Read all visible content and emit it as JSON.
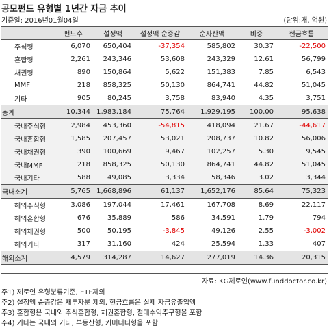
{
  "title": "공모펀드 유형별 1년간 자금 추이",
  "base_date": "기준일: 2016년01월04일",
  "unit": "(단위:개, 억원)",
  "columns": [
    "",
    "펀드수",
    "설정액",
    "설정액 순증감",
    "순자산액",
    "비중",
    "현금흐름"
  ],
  "rows": [
    {
      "type": "sub",
      "name": "주식형",
      "funds": "6,070",
      "setup": "650,404",
      "net": "-37,354",
      "nav": "585,802",
      "share": "30.37",
      "cash": "-22,500"
    },
    {
      "type": "sub",
      "name": "혼합형",
      "funds": "2,261",
      "setup": "243,346",
      "net": "53,608",
      "nav": "243,329",
      "share": "12.61",
      "cash": "56,799"
    },
    {
      "type": "sub",
      "name": "채권형",
      "funds": "890",
      "setup": "150,864",
      "net": "5,622",
      "nav": "151,383",
      "share": "7.85",
      "cash": "6,543"
    },
    {
      "type": "sub",
      "name": "MMF",
      "funds": "218",
      "setup": "858,325",
      "net": "50,130",
      "nav": "864,741",
      "share": "44.82",
      "cash": "51,045"
    },
    {
      "type": "sub",
      "name": "기타",
      "funds": "905",
      "setup": "80,245",
      "net": "3,758",
      "nav": "83,940",
      "share": "4.35",
      "cash": "3,751"
    },
    {
      "type": "total",
      "name": "총계",
      "funds": "10,344",
      "setup": "1,983,184",
      "net": "75,764",
      "nav": "1,929,195",
      "share": "100.00",
      "cash": "95,638"
    },
    {
      "type": "domestic",
      "name": "국내주식형",
      "funds": "2,984",
      "setup": "453,360",
      "net": "-54,815",
      "nav": "418,094",
      "share": "21.67",
      "cash": "-44,617"
    },
    {
      "type": "domestic",
      "name": "국내혼합형",
      "funds": "1,585",
      "setup": "207,457",
      "net": "53,021",
      "nav": "208,737",
      "share": "10.82",
      "cash": "56,006"
    },
    {
      "type": "domestic",
      "name": "국내채권형",
      "funds": "390",
      "setup": "100,669",
      "net": "9,467",
      "nav": "102,257",
      "share": "5.30",
      "cash": "9,545"
    },
    {
      "type": "domestic",
      "name": "국내MMF",
      "funds": "218",
      "setup": "858,325",
      "net": "50,130",
      "nav": "864,741",
      "share": "44.82",
      "cash": "51,045"
    },
    {
      "type": "domestic",
      "name": "국내기타",
      "funds": "588",
      "setup": "49,085",
      "net": "3,334",
      "nav": "58,346",
      "share": "3.02",
      "cash": "3,344"
    },
    {
      "type": "total",
      "name": "국내소계",
      "funds": "5,765",
      "setup": "1,668,896",
      "net": "61,137",
      "nav": "1,652,176",
      "share": "85.64",
      "cash": "75,323"
    },
    {
      "type": "sub",
      "name": "해외주식형",
      "funds": "3,086",
      "setup": "197,044",
      "net": "17,461",
      "nav": "167,708",
      "share": "8.69",
      "cash": "22,117"
    },
    {
      "type": "sub",
      "name": "해외혼합형",
      "funds": "676",
      "setup": "35,889",
      "net": "586",
      "nav": "34,591",
      "share": "1.79",
      "cash": "794"
    },
    {
      "type": "sub",
      "name": "해외채권형",
      "funds": "500",
      "setup": "50,195",
      "net": "-3,845",
      "nav": "49,126",
      "share": "2.55",
      "cash": "-3,002"
    },
    {
      "type": "sub",
      "name": "해외기타",
      "funds": "317",
      "setup": "31,160",
      "net": "424",
      "nav": "25,594",
      "share": "1.33",
      "cash": "407"
    },
    {
      "type": "total",
      "name": "해외소계",
      "funds": "4,579",
      "setup": "314,287",
      "net": "14,627",
      "nav": "277,019",
      "share": "14.36",
      "cash": "20,315"
    }
  ],
  "source": "자료: KG제로인(www.funddoctor.co.kr)",
  "notes": [
    "주1) 제로인 유형분류기준, ETF제외",
    "주2) 설정액 순증감은 재투자분 제외, 현금흐름은 실제 자금유출입액",
    "주3) 혼합형은 국내외 주식혼합형, 채권혼합형, 절대수익추구형을 포함",
    "주4) 기타는 국내외 기타, 부동산형, 커머더티형을 포함"
  ],
  "colors": {
    "negative": "#e00000",
    "header_bg": "#e4e4e4",
    "domestic_bg": "#f2f2f2"
  }
}
